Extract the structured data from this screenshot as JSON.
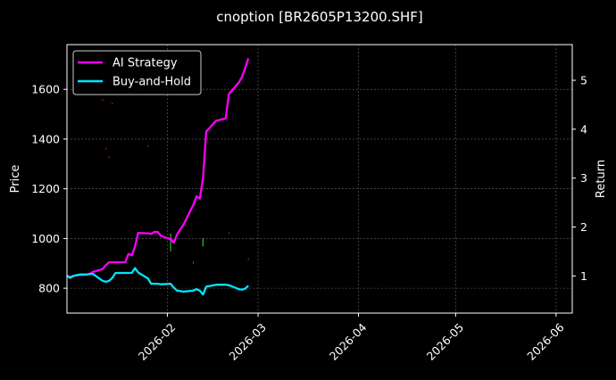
{
  "chart_data": {
    "type": "line",
    "title": "cnoption [BR2605P13200.SHF]",
    "xlabel": "",
    "ylabel_left": "Price",
    "ylabel_right": "Return",
    "x_ticks": [
      "2026-02",
      "2026-03",
      "2026-04",
      "2026-05",
      "2026-06"
    ],
    "x_tick_dates": [
      "2026-02-01",
      "2026-03-01",
      "2026-04-01",
      "2026-05-01",
      "2026-06-01"
    ],
    "xlim": [
      "2026-01-01",
      "2026-06-06"
    ],
    "y_left_ticks": [
      800,
      1000,
      1200,
      1400,
      1600
    ],
    "y_left_lim": [
      700,
      1780
    ],
    "y_right_ticks": [
      1,
      2,
      3,
      4,
      5
    ],
    "y_right_lim": [
      0.24,
      5.73
    ],
    "grid": true,
    "legend_position": "top-left",
    "legend": [
      "AI Strategy",
      "Buy-and-Hold"
    ],
    "colors": {
      "background": "#000000",
      "ai_strategy": "#ff00ff",
      "buy_and_hold": "#00e5ff",
      "price_up": "#22c022",
      "price_down": "#cc1020",
      "grid": "#666666",
      "axes": "#ffffff"
    },
    "series": [
      {
        "name": "AI Strategy",
        "axis": "right",
        "points": [
          [
            "2026-01-01",
            1.0
          ],
          [
            "2026-01-02",
            0.98
          ],
          [
            "2026-01-03",
            1.0
          ],
          [
            "2026-01-05",
            1.02
          ],
          [
            "2026-01-06",
            1.02
          ],
          [
            "2026-01-07",
            1.03
          ],
          [
            "2026-01-08",
            1.04
          ],
          [
            "2026-01-09",
            1.08
          ],
          [
            "2026-01-12",
            1.14
          ],
          [
            "2026-01-13",
            1.22
          ],
          [
            "2026-01-14",
            1.28
          ],
          [
            "2026-01-15",
            1.28
          ],
          [
            "2026-01-16",
            1.28
          ],
          [
            "2026-01-19",
            1.28
          ],
          [
            "2026-01-20",
            1.45
          ],
          [
            "2026-01-21",
            1.42
          ],
          [
            "2026-01-22",
            1.6
          ],
          [
            "2026-01-23",
            1.88
          ],
          [
            "2026-01-26",
            1.87
          ],
          [
            "2026-01-27",
            1.86
          ],
          [
            "2026-01-28",
            1.9
          ],
          [
            "2026-01-29",
            1.9
          ],
          [
            "2026-01-30",
            1.82
          ],
          [
            "2026-02-02",
            1.75
          ],
          [
            "2026-02-03",
            1.68
          ],
          [
            "2026-02-04",
            1.85
          ],
          [
            "2026-02-06",
            2.05
          ],
          [
            "2026-02-09",
            2.45
          ],
          [
            "2026-02-10",
            2.63
          ],
          [
            "2026-02-11",
            2.58
          ],
          [
            "2026-02-12",
            3.0
          ],
          [
            "2026-02-13",
            3.95
          ],
          [
            "2026-02-16",
            4.17
          ],
          [
            "2026-02-19",
            4.22
          ],
          [
            "2026-02-20",
            4.72
          ],
          [
            "2026-02-23",
            4.95
          ],
          [
            "2026-02-24",
            5.06
          ],
          [
            "2026-02-25",
            5.25
          ],
          [
            "2026-02-26",
            5.45
          ]
        ]
      },
      {
        "name": "Buy-and-Hold",
        "axis": "right",
        "points": [
          [
            "2026-01-01",
            1.0
          ],
          [
            "2026-01-02",
            0.96
          ],
          [
            "2026-01-03",
            1.0
          ],
          [
            "2026-01-05",
            1.03
          ],
          [
            "2026-01-06",
            1.03
          ],
          [
            "2026-01-07",
            1.03
          ],
          [
            "2026-01-08",
            1.04
          ],
          [
            "2026-01-09",
            1.04
          ],
          [
            "2026-01-12",
            0.9
          ],
          [
            "2026-01-13",
            0.88
          ],
          [
            "2026-01-14",
            0.9
          ],
          [
            "2026-01-15",
            0.96
          ],
          [
            "2026-01-16",
            1.06
          ],
          [
            "2026-01-19",
            1.06
          ],
          [
            "2026-01-20",
            1.06
          ],
          [
            "2026-01-21",
            1.06
          ],
          [
            "2026-01-22",
            1.16
          ],
          [
            "2026-01-23",
            1.07
          ],
          [
            "2026-01-26",
            0.95
          ],
          [
            "2026-01-27",
            0.84
          ],
          [
            "2026-01-28",
            0.84
          ],
          [
            "2026-01-29",
            0.84
          ],
          [
            "2026-01-30",
            0.83
          ],
          [
            "2026-02-02",
            0.84
          ],
          [
            "2026-02-03",
            0.76
          ],
          [
            "2026-02-04",
            0.7
          ],
          [
            "2026-02-06",
            0.68
          ],
          [
            "2026-02-09",
            0.7
          ],
          [
            "2026-02-10",
            0.73
          ],
          [
            "2026-02-11",
            0.7
          ],
          [
            "2026-02-12",
            0.62
          ],
          [
            "2026-02-13",
            0.78
          ],
          [
            "2026-02-16",
            0.82
          ],
          [
            "2026-02-19",
            0.82
          ],
          [
            "2026-02-20",
            0.81
          ],
          [
            "2026-02-23",
            0.73
          ],
          [
            "2026-02-24",
            0.72
          ],
          [
            "2026-02-25",
            0.74
          ],
          [
            "2026-02-26",
            0.8
          ]
        ]
      }
    ],
    "price_marks": [
      {
        "date": "2026-01-12",
        "low": 1553,
        "high": 1560,
        "direction": "down"
      },
      {
        "date": "2026-01-13",
        "low": 1358,
        "high": 1364,
        "direction": "down"
      },
      {
        "date": "2026-01-14",
        "low": 1324,
        "high": 1330,
        "direction": "down"
      },
      {
        "date": "2026-01-15",
        "low": 1540,
        "high": 1546,
        "direction": "down"
      },
      {
        "date": "2026-01-26",
        "low": 1368,
        "high": 1374,
        "direction": "down"
      },
      {
        "date": "2026-02-02",
        "low": 948,
        "high": 1020,
        "direction": "up"
      },
      {
        "date": "2026-02-09",
        "low": 898,
        "high": 908,
        "direction": "down"
      },
      {
        "date": "2026-02-12",
        "low": 968,
        "high": 1002,
        "direction": "up"
      },
      {
        "date": "2026-02-20",
        "low": 1020,
        "high": 1026,
        "direction": "down"
      },
      {
        "date": "2026-02-26",
        "low": 914,
        "high": 920,
        "direction": "down"
      },
      {
        "date": "2026-02-27",
        "low": 996,
        "high": 1002,
        "direction": "down"
      }
    ]
  }
}
